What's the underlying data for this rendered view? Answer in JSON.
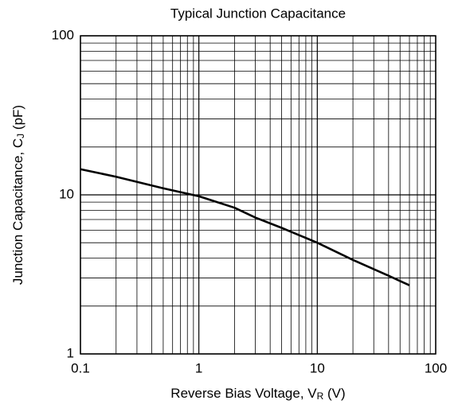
{
  "chart_data": {
    "type": "line",
    "title": "Typical Junction Capacitance",
    "xlabel": {
      "text": "Reverse Bias Voltage, V",
      "sub": "R",
      "end": " (V)"
    },
    "ylabel": {
      "text": "Junction Capacitance, C",
      "sub": "J",
      "end": " (pF)"
    },
    "x": [
      0.1,
      0.2,
      0.5,
      1,
      2,
      3,
      5,
      10,
      20,
      40,
      60
    ],
    "series": [
      {
        "name": "CJ",
        "color": "#000000",
        "values": [
          14.5,
          13,
          11,
          9.8,
          8.3,
          7.2,
          6.2,
          5,
          3.9,
          3.1,
          2.7
        ]
      }
    ],
    "xlim": [
      0.1,
      100
    ],
    "ylim": [
      1,
      100
    ],
    "xticks": [
      0.1,
      1,
      10,
      100
    ],
    "yticks": [
      1,
      10,
      100
    ],
    "xscale": "log",
    "yscale": "log",
    "grid": "minor"
  }
}
